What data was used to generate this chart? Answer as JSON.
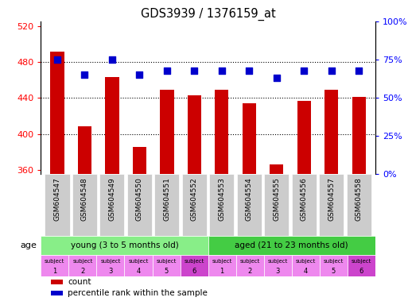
{
  "title": "GDS3939 / 1376159_at",
  "samples": [
    "GSM604547",
    "GSM604548",
    "GSM604549",
    "GSM604550",
    "GSM604551",
    "GSM604552",
    "GSM604553",
    "GSM604554",
    "GSM604555",
    "GSM604556",
    "GSM604557",
    "GSM604558"
  ],
  "counts": [
    491,
    408,
    463,
    385,
    449,
    443,
    449,
    434,
    366,
    437,
    449,
    441
  ],
  "percentile_ranks": [
    75,
    65,
    75,
    65,
    68,
    68,
    68,
    68,
    63,
    68,
    68,
    68
  ],
  "ylim_left": [
    355,
    525
  ],
  "ylim_right": [
    0,
    100
  ],
  "yticks_left": [
    360,
    400,
    440,
    480,
    520
  ],
  "yticks_right": [
    0,
    25,
    50,
    75,
    100
  ],
  "bar_color": "#cc0000",
  "dot_color": "#0000cc",
  "age_young_color": "#88ee88",
  "age_aged_color": "#44cc44",
  "specimen_young_colors": [
    "#ee88ee",
    "#ee88ee",
    "#ee88ee",
    "#ee88ee",
    "#ee88ee",
    "#dd44dd"
  ],
  "specimen_aged_colors": [
    "#ee88ee",
    "#ee88ee",
    "#ee88ee",
    "#ee88ee",
    "#ee88ee",
    "#dd44dd"
  ],
  "age_young_label": "young (3 to 5 months old)",
  "age_aged_label": "aged (21 to 23 months old)",
  "specimen_top": [
    "subject",
    "subject",
    "subject",
    "subject",
    "subject",
    "subject",
    "subject",
    "subject",
    "subject",
    "subject",
    "subject",
    "subject"
  ],
  "specimen_bot": [
    "1",
    "2",
    "3",
    "4",
    "5",
    "6",
    "1",
    "2",
    "3",
    "4",
    "5",
    "6"
  ],
  "n_young": 6,
  "n_aged": 6,
  "grid_ticks": [
    400,
    440,
    480
  ],
  "bar_width": 0.5
}
